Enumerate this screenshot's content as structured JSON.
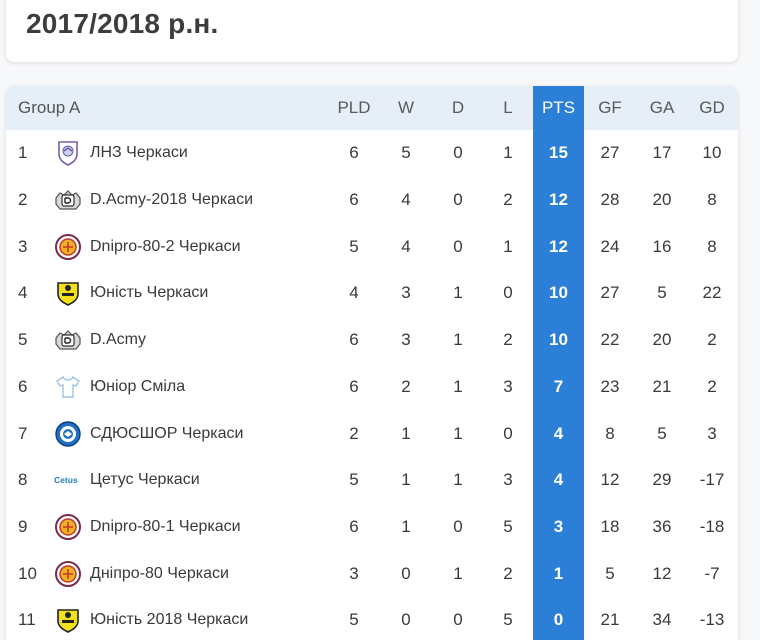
{
  "season": "2017/2018 р.н.",
  "table": {
    "group": "Group A",
    "headers": {
      "pld": "PLD",
      "w": "W",
      "d": "D",
      "l": "L",
      "pts": "PTS",
      "gf": "GF",
      "ga": "GA",
      "gd": "GD"
    },
    "rows": [
      {
        "pos": "1",
        "team": "ЛНЗ Черкаси",
        "logo": "lnz-crest-icon",
        "pld": "6",
        "w": "5",
        "d": "0",
        "l": "1",
        "pts": "15",
        "gf": "27",
        "ga": "17",
        "gd": "10"
      },
      {
        "pos": "2",
        "team": "D.Acmy-2018 Черкаси",
        "logo": "dacmy-crest-icon",
        "pld": "6",
        "w": "4",
        "d": "0",
        "l": "2",
        "pts": "12",
        "gf": "28",
        "ga": "20",
        "gd": "8"
      },
      {
        "pos": "3",
        "team": "Dnipro-80-2 Черкаси",
        "logo": "dnipro-crest-icon",
        "pld": "5",
        "w": "4",
        "d": "0",
        "l": "1",
        "pts": "12",
        "gf": "24",
        "ga": "16",
        "gd": "8"
      },
      {
        "pos": "4",
        "team": "Юність Черкаси",
        "logo": "yunist-crest-icon",
        "pld": "4",
        "w": "3",
        "d": "1",
        "l": "0",
        "pts": "10",
        "gf": "27",
        "ga": "5",
        "gd": "22"
      },
      {
        "pos": "5",
        "team": "D.Acmy",
        "logo": "dacmy-crest-icon",
        "pld": "6",
        "w": "3",
        "d": "1",
        "l": "2",
        "pts": "10",
        "gf": "22",
        "ga": "20",
        "gd": "2"
      },
      {
        "pos": "6",
        "team": "Юніор Сміла",
        "logo": "shirt-icon",
        "pld": "6",
        "w": "2",
        "d": "1",
        "l": "3",
        "pts": "7",
        "gf": "23",
        "ga": "21",
        "gd": "2"
      },
      {
        "pos": "7",
        "team": "СДЮСШОР Черкаси",
        "logo": "sdyushor-crest-icon",
        "pld": "2",
        "w": "1",
        "d": "1",
        "l": "0",
        "pts": "4",
        "gf": "8",
        "ga": "5",
        "gd": "3"
      },
      {
        "pos": "8",
        "team": "Цетус Черкаси",
        "logo": "cetus-logo-icon",
        "pld": "5",
        "w": "1",
        "d": "1",
        "l": "3",
        "pts": "4",
        "gf": "12",
        "ga": "29",
        "gd": "-17"
      },
      {
        "pos": "9",
        "team": "Dnipro-80-1 Черкаси",
        "logo": "dnipro-crest-icon",
        "pld": "6",
        "w": "1",
        "d": "0",
        "l": "5",
        "pts": "3",
        "gf": "18",
        "ga": "36",
        "gd": "-18"
      },
      {
        "pos": "10",
        "team": "Дніпро-80 Черкаси",
        "logo": "dnipro-crest-icon",
        "pld": "3",
        "w": "0",
        "d": "1",
        "l": "2",
        "pts": "1",
        "gf": "5",
        "ga": "12",
        "gd": "-7"
      },
      {
        "pos": "11",
        "team": "Юність 2018 Черкаси",
        "logo": "yunist-crest-icon",
        "pld": "5",
        "w": "0",
        "d": "0",
        "l": "5",
        "pts": "0",
        "gf": "21",
        "ga": "34",
        "gd": "-13"
      }
    ]
  },
  "colors": {
    "pts_column": "#2b7fd6",
    "header_bg": "#e6eef7"
  },
  "logo_text": {
    "cetus": "Cetus"
  }
}
